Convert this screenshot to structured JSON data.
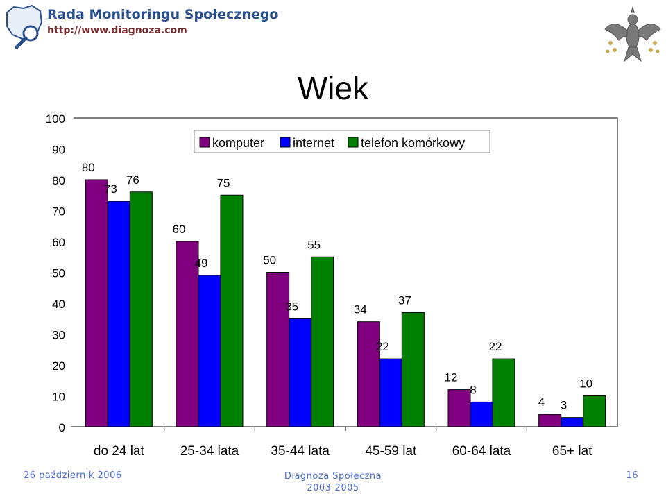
{
  "header": {
    "brand_name": "Rada Monitoringu Społecznego",
    "brand_url": "http://www.diagnoza.com"
  },
  "footer": {
    "date": "26 październik 2006",
    "center_line1": "Diagnoza Społeczna",
    "center_line2": "2003-2005",
    "page_number": "16"
  },
  "chart_data": {
    "type": "bar",
    "title": "Wiek",
    "categories": [
      "do 24 lat",
      "25-34 lata",
      "35-44 lata",
      "45-59 lat",
      "60-64 lata",
      "65+ lat"
    ],
    "series": [
      {
        "name": "komputer",
        "color": "#800080",
        "values": [
          80,
          60,
          50,
          34,
          12,
          4
        ]
      },
      {
        "name": "internet",
        "color": "#0000ff",
        "values": [
          73,
          49,
          35,
          22,
          8,
          3
        ]
      },
      {
        "name": "telefon komórkowy",
        "color": "#008000",
        "values": [
          76,
          75,
          55,
          37,
          22,
          10
        ]
      }
    ],
    "ylim": [
      0,
      100
    ],
    "yticks": [
      0,
      10,
      20,
      30,
      40,
      50,
      60,
      70,
      80,
      90,
      100
    ],
    "grid": false,
    "legend_position": "top"
  }
}
